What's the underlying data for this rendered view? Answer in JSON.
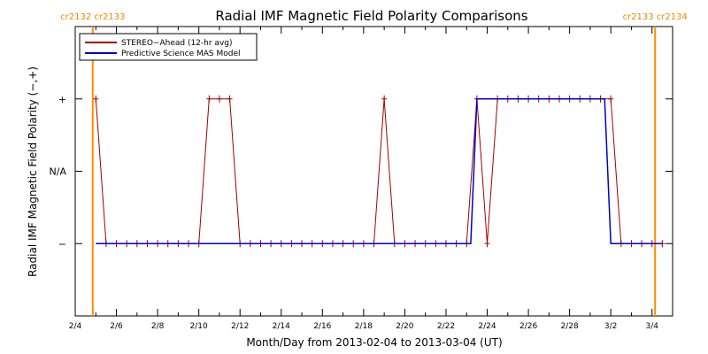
{
  "chart_data": {
    "type": "line",
    "title": "Radial IMF Magnetic Field Polarity Comparisons",
    "xlabel": "Month/Day from 2013-02-04 to 2013-03-04 (UT)",
    "ylabel": "Radial IMF Magnetic Field Polarity (−,+)",
    "x_unit": "days from 2013-02-04",
    "xlim": [
      0,
      29
    ],
    "ylim": [
      -2,
      2
    ],
    "x_ticks": [
      {
        "x": 0,
        "label": "2/4"
      },
      {
        "x": 2,
        "label": "2/6"
      },
      {
        "x": 4,
        "label": "2/8"
      },
      {
        "x": 6,
        "label": "2/10"
      },
      {
        "x": 8,
        "label": "2/12"
      },
      {
        "x": 10,
        "label": "2/14"
      },
      {
        "x": 12,
        "label": "2/16"
      },
      {
        "x": 14,
        "label": "2/18"
      },
      {
        "x": 16,
        "label": "2/20"
      },
      {
        "x": 18,
        "label": "2/22"
      },
      {
        "x": 20,
        "label": "2/24"
      },
      {
        "x": 22,
        "label": "2/26"
      },
      {
        "x": 24,
        "label": "2/28"
      },
      {
        "x": 26,
        "label": "3/2"
      },
      {
        "x": 28,
        "label": "3/4"
      }
    ],
    "y_ticks": [
      {
        "y": 1,
        "label": "+"
      },
      {
        "y": 0,
        "label": "N/A"
      },
      {
        "y": -1,
        "label": "−"
      }
    ],
    "legend_position": "top-left",
    "carrington_rotations": [
      {
        "x": 0.85,
        "label": "cr2132 cr2133"
      },
      {
        "x": 28.15,
        "label": "cr2133 cr2134"
      }
    ],
    "series": [
      {
        "name": "STEREO−Ahead (12-hr avg)",
        "color": "#a00000",
        "marker": "+",
        "points": [
          [
            1,
            1
          ],
          [
            1.5,
            -1
          ],
          [
            2,
            -1
          ],
          [
            2.5,
            -1
          ],
          [
            3,
            -1
          ],
          [
            3.5,
            -1
          ],
          [
            4,
            -1
          ],
          [
            4.5,
            -1
          ],
          [
            5,
            -1
          ],
          [
            5.5,
            -1
          ],
          [
            6,
            -1
          ],
          [
            6.5,
            1
          ],
          [
            7,
            1
          ],
          [
            7.5,
            1
          ],
          [
            8,
            -1
          ],
          [
            8.5,
            -1
          ],
          [
            9,
            -1
          ],
          [
            9.5,
            -1
          ],
          [
            10,
            -1
          ],
          [
            10.5,
            -1
          ],
          [
            11,
            -1
          ],
          [
            11.5,
            -1
          ],
          [
            12,
            -1
          ],
          [
            12.5,
            -1
          ],
          [
            13,
            -1
          ],
          [
            13.5,
            -1
          ],
          [
            14,
            -1
          ],
          [
            14.5,
            -1
          ],
          [
            15,
            1
          ],
          [
            15.5,
            -1
          ],
          [
            16,
            -1
          ],
          [
            16.5,
            -1
          ],
          [
            17,
            -1
          ],
          [
            17.5,
            -1
          ],
          [
            18,
            -1
          ],
          [
            18.5,
            -1
          ],
          [
            19,
            -1
          ],
          [
            19.5,
            1
          ],
          [
            20,
            -1
          ],
          [
            20.5,
            1
          ],
          [
            21,
            1
          ],
          [
            21.5,
            1
          ],
          [
            22,
            1
          ],
          [
            22.5,
            1
          ],
          [
            23,
            1
          ],
          [
            23.5,
            1
          ],
          [
            24,
            1
          ],
          [
            24.5,
            1
          ],
          [
            25,
            1
          ],
          [
            25.5,
            1
          ],
          [
            26,
            1
          ],
          [
            26.5,
            -1
          ],
          [
            27,
            -1
          ],
          [
            27.5,
            -1
          ],
          [
            28,
            -1
          ],
          [
            28.5,
            -1
          ]
        ]
      },
      {
        "name": "Predictive Science MAS Model",
        "color": "#0000cc",
        "marker": "",
        "points": [
          [
            1,
            -1
          ],
          [
            19.2,
            -1
          ],
          [
            19.5,
            1
          ],
          [
            25.7,
            1
          ],
          [
            26,
            -1
          ],
          [
            28.5,
            -1
          ]
        ]
      }
    ]
  }
}
